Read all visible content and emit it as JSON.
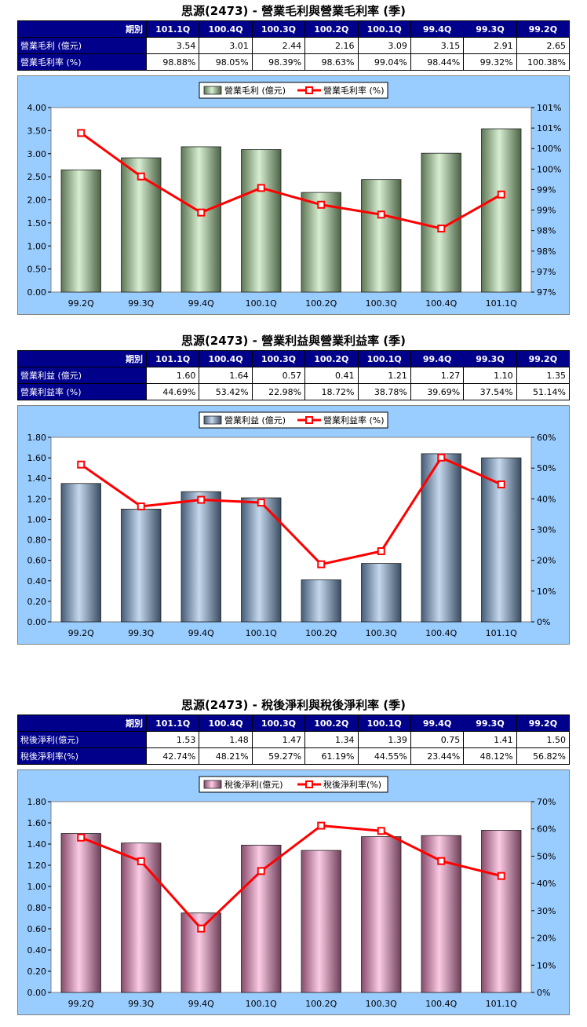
{
  "charts": [
    {
      "title": "思源(2473) - 營業毛利與營業毛利率 (季)",
      "table": {
        "header_label": "期別",
        "periods": [
          "101.1Q",
          "100.4Q",
          "100.3Q",
          "100.2Q",
          "100.1Q",
          "99.4Q",
          "99.3Q",
          "99.2Q"
        ],
        "rows": [
          {
            "label": "營業毛利 (億元)",
            "values": [
              "3.54",
              "3.01",
              "2.44",
              "2.16",
              "3.09",
              "3.15",
              "2.91",
              "2.65"
            ]
          },
          {
            "label": "營業毛利率 (%)",
            "values": [
              "98.88%",
              "98.05%",
              "98.39%",
              "98.63%",
              "99.04%",
              "98.44%",
              "99.32%",
              "100.38%"
            ]
          }
        ]
      }
    },
    {
      "title": "思源(2473) - 營業利益與營業利益率 (季)",
      "table": {
        "header_label": "期別",
        "periods": [
          "101.1Q",
          "100.4Q",
          "100.3Q",
          "100.2Q",
          "100.1Q",
          "99.4Q",
          "99.3Q",
          "99.2Q"
        ],
        "rows": [
          {
            "label": "營業利益 (億元)",
            "values": [
              "1.60",
              "1.64",
              "0.57",
              "0.41",
              "1.21",
              "1.27",
              "1.10",
              "1.35"
            ]
          },
          {
            "label": "營業利益率 (%)",
            "values": [
              "44.69%",
              "53.42%",
              "22.98%",
              "18.72%",
              "38.78%",
              "39.69%",
              "37.54%",
              "51.14%"
            ]
          }
        ]
      }
    },
    {
      "title": "思源(2473) - 稅後淨利與稅後淨利率 (季)",
      "table": {
        "header_label": "期別",
        "periods": [
          "101.1Q",
          "100.4Q",
          "100.3Q",
          "100.2Q",
          "100.1Q",
          "99.4Q",
          "99.3Q",
          "99.2Q"
        ],
        "rows": [
          {
            "label": "稅後淨利(億元)",
            "values": [
              "1.53",
              "1.48",
              "1.47",
              "1.34",
              "1.39",
              "0.75",
              "1.41",
              "1.50"
            ]
          },
          {
            "label": "稅後淨利率(%)",
            "values": [
              "42.74%",
              "48.21%",
              "59.27%",
              "61.19%",
              "44.55%",
              "23.44%",
              "48.12%",
              "56.82%"
            ]
          }
        ]
      }
    }
  ],
  "chart_data": [
    {
      "type": "bar",
      "categories": [
        "99.2Q",
        "99.3Q",
        "99.4Q",
        "100.1Q",
        "100.2Q",
        "100.3Q",
        "100.4Q",
        "101.1Q"
      ],
      "series": [
        {
          "name": "營業毛利 (億元)",
          "type": "bar",
          "axis": "left",
          "color": "#a9d99a",
          "values": [
            2.65,
            2.91,
            3.15,
            3.09,
            2.16,
            2.44,
            3.01,
            3.54
          ]
        },
        {
          "name": "營業毛利率 (%)",
          "type": "line",
          "axis": "right",
          "color": "#ff0000",
          "values": [
            100.38,
            99.32,
            98.44,
            99.04,
            98.63,
            98.39,
            98.05,
            98.88
          ]
        }
      ],
      "ylim_left": [
        0,
        4
      ],
      "yticks_left": [
        "0.00",
        "0.50",
        "1.00",
        "1.50",
        "2.00",
        "2.50",
        "3.00",
        "3.50",
        "4.00"
      ],
      "ylim_right": [
        96.5,
        101
      ],
      "yticks_right": [
        "97%",
        "97%",
        "98%",
        "98%",
        "99%",
        "99%",
        "100%",
        "100%",
        "101%",
        "101%"
      ],
      "legend": "top-center",
      "grid": false
    },
    {
      "type": "bar",
      "categories": [
        "99.2Q",
        "99.3Q",
        "99.4Q",
        "100.1Q",
        "100.2Q",
        "100.3Q",
        "100.4Q",
        "101.1Q"
      ],
      "series": [
        {
          "name": "營業利益 (億元)",
          "type": "bar",
          "axis": "left",
          "color": "#7fa8d8",
          "values": [
            1.35,
            1.1,
            1.27,
            1.21,
            0.41,
            0.57,
            1.64,
            1.6
          ]
        },
        {
          "name": "營業利益率 (%)",
          "type": "line",
          "axis": "right",
          "color": "#ff0000",
          "values": [
            51.14,
            37.54,
            39.69,
            38.78,
            18.72,
            22.98,
            53.42,
            44.69
          ]
        }
      ],
      "ylim_left": [
        0,
        1.8
      ],
      "yticks_left": [
        "0.00",
        "0.20",
        "0.40",
        "0.60",
        "0.80",
        "1.00",
        "1.20",
        "1.40",
        "1.60",
        "1.80"
      ],
      "ylim_right": [
        0,
        60
      ],
      "yticks_right": [
        "0%",
        "10%",
        "20%",
        "30%",
        "40%",
        "50%",
        "60%"
      ],
      "legend": "top-center",
      "grid": false
    },
    {
      "type": "bar",
      "categories": [
        "99.2Q",
        "99.3Q",
        "99.4Q",
        "100.1Q",
        "100.2Q",
        "100.3Q",
        "100.4Q",
        "101.1Q"
      ],
      "series": [
        {
          "name": "稅後淨利(億元)",
          "type": "bar",
          "axis": "left",
          "color": "#f58bc3",
          "values": [
            1.5,
            1.41,
            0.75,
            1.39,
            1.34,
            1.47,
            1.48,
            1.53
          ]
        },
        {
          "name": "稅後淨利率(%)",
          "type": "line",
          "axis": "right",
          "color": "#ff0000",
          "values": [
            56.82,
            48.12,
            23.44,
            44.55,
            61.19,
            59.27,
            48.21,
            42.74
          ]
        }
      ],
      "ylim_left": [
        0,
        1.8
      ],
      "yticks_left": [
        "0.00",
        "0.20",
        "0.40",
        "0.60",
        "0.80",
        "1.00",
        "1.20",
        "1.40",
        "1.60",
        "1.80"
      ],
      "ylim_right": [
        0,
        70
      ],
      "yticks_right": [
        "0%",
        "10%",
        "20%",
        "30%",
        "40%",
        "50%",
        "60%",
        "70%"
      ],
      "legend": "top-center",
      "grid": false
    }
  ]
}
